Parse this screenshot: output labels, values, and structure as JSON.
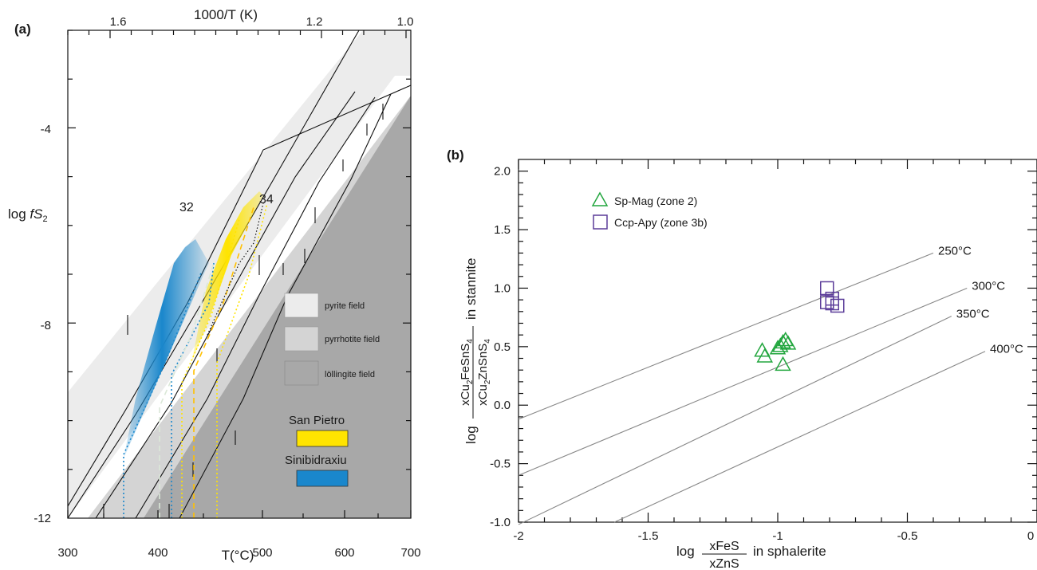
{
  "chart_data": [
    {
      "panel": "(a)",
      "type": "line",
      "xlabel": "T(°C)",
      "ylabel_prefix": "log ",
      "ylabel_italic": "fS",
      "ylabel_sub": "2",
      "top_axis_label": "1000/T (K)",
      "x_ticks": [
        "300",
        "400",
        "500",
        "600",
        "700"
      ],
      "top_ticks": [
        "1.6",
        "1.2",
        "1.0"
      ],
      "y_ticks": [
        "-4",
        "-8",
        "-12"
      ],
      "xlim": [
        280,
        720
      ],
      "ylim": [
        -12,
        -0.6
      ],
      "curve_labels": [
        "32",
        "34"
      ],
      "fields": [
        {
          "name": "pyrite field",
          "color": "#ececec"
        },
        {
          "name": "pyrrhotite field",
          "color": "#d4d4d4"
        },
        {
          "name": "löllingite field",
          "color": "#a8a8a8"
        }
      ],
      "deposits": [
        {
          "name": "San Pietro",
          "color": "#ffe400"
        },
        {
          "name": "Sinibidraxiu",
          "color": "#1a87cc"
        }
      ]
    },
    {
      "panel": "(b)",
      "type": "scatter",
      "xlabel_prefix": "log",
      "xlabel_num": "xFeS",
      "xlabel_den": "xZnS",
      "xlabel_suffix": "in sphalerite",
      "ylabel_prefix": "log",
      "ylabel_suffix": "in stannite",
      "x_ticks": [
        "-2",
        "-1.5",
        "-1",
        "-0.5",
        "0"
      ],
      "y_ticks": [
        "2.0",
        "1.5",
        "1.0",
        "0.5",
        "0.0",
        "-0.5",
        "-1.0"
      ],
      "xlim": [
        -2,
        0
      ],
      "ylim": [
        -1,
        2.1
      ],
      "isotherms": [
        {
          "label": "250°C",
          "x": [
            -2,
            -0.4
          ],
          "y": [
            -0.12,
            1.3
          ]
        },
        {
          "label": "300°C",
          "x": [
            -2,
            -0.27
          ],
          "y": [
            -0.6,
            1.0
          ]
        },
        {
          "label": "350°C",
          "x": [
            -2,
            -0.33
          ],
          "y": [
            -1.02,
            0.76
          ]
        },
        {
          "label": "400°C",
          "x": [
            -1.63,
            -0.2
          ],
          "y": [
            -1.0,
            0.46
          ]
        }
      ],
      "series": [
        {
          "name": "Sp-Mag (zone 2)",
          "marker": "triangle",
          "color": "#22a63e",
          "points": [
            [
              -1.06,
              0.46
            ],
            [
              -1.05,
              0.41
            ],
            [
              -1.0,
              0.48
            ],
            [
              -0.99,
              0.5
            ],
            [
              -0.98,
              0.53
            ],
            [
              -0.97,
              0.55
            ],
            [
              -0.96,
              0.52
            ],
            [
              -0.98,
              0.34
            ]
          ]
        },
        {
          "name": "Ccp-Apy (zone 3b)",
          "marker": "square",
          "color": "#5b3c99",
          "points": [
            [
              -0.81,
              1.0
            ],
            [
              -0.81,
              0.88
            ],
            [
              -0.79,
              0.91
            ],
            [
              -0.79,
              0.87
            ],
            [
              -0.77,
              0.85
            ]
          ]
        }
      ]
    }
  ]
}
